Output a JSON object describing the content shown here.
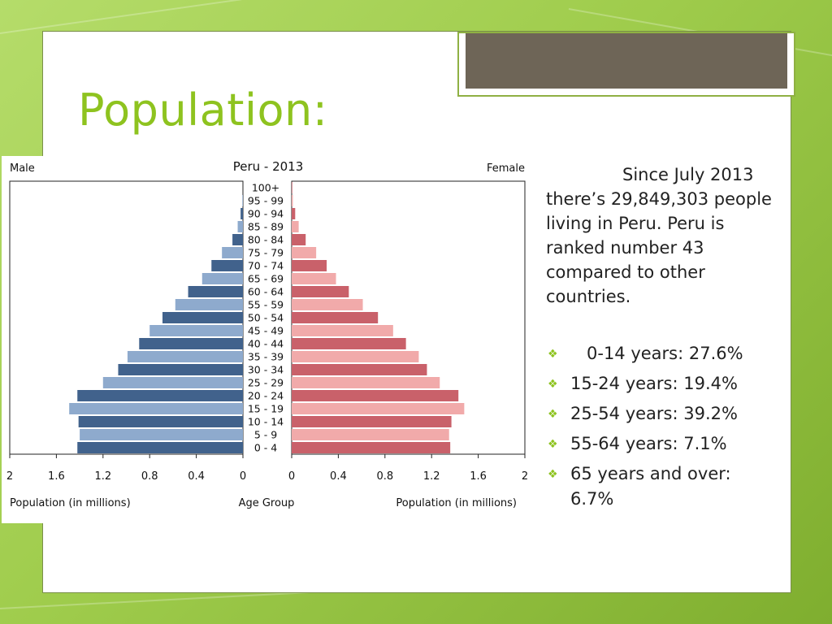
{
  "slide": {
    "heading": "Population:",
    "body_paragraph": "Since July 2013 there’s 29,849,303 people living in Peru. Peru is ranked number 43 compared to other countries.",
    "stats": [
      "0-14 years: 27.6%",
      "15-24 years: 19.4%",
      "25-54 years: 39.2%",
      "55-64 years: 7.1%",
      "65 years and over: 6.7%"
    ],
    "bullet_icon": "diamond-cluster-icon",
    "accent_color": "#8ec31f",
    "title_bar_color": "#6e6557"
  },
  "chart_data": {
    "type": "bar",
    "title": "Peru - 2013",
    "left_label": "Male",
    "right_label": "Female",
    "xlabel_left": "Population (in millions)",
    "xlabel_center": "Age Group",
    "xlabel_right": "Population (in millions)",
    "xlim": [
      0,
      2
    ],
    "left_ticks": [
      "2",
      "1.6",
      "1.2",
      "0.8",
      "0.4",
      "0"
    ],
    "right_ticks": [
      "0",
      "0.4",
      "0.8",
      "1.2",
      "1.6",
      "2"
    ],
    "categories": [
      "100+",
      "95 - 99",
      "90 - 94",
      "85 - 89",
      "80 - 84",
      "75 - 79",
      "70 - 74",
      "65 - 69",
      "60 - 64",
      "55 - 59",
      "50 - 54",
      "45 - 49",
      "40 - 44",
      "35 - 39",
      "30 - 34",
      "25 - 29",
      "20 - 24",
      "15 - 19",
      "10 - 14",
      "5 - 9",
      "0 - 4"
    ],
    "series": [
      {
        "name": "Male",
        "values": [
          0.0,
          0.005,
          0.02,
          0.045,
          0.09,
          0.18,
          0.27,
          0.35,
          0.47,
          0.58,
          0.69,
          0.8,
          0.89,
          0.99,
          1.07,
          1.2,
          1.42,
          1.49,
          1.41,
          1.4,
          1.42
        ],
        "colors": [
          "#41628c",
          "#8eaacd"
        ]
      },
      {
        "name": "Female",
        "values": [
          0.005,
          0.01,
          0.03,
          0.06,
          0.12,
          0.21,
          0.3,
          0.38,
          0.49,
          0.61,
          0.74,
          0.87,
          0.98,
          1.09,
          1.16,
          1.27,
          1.43,
          1.48,
          1.37,
          1.35,
          1.36
        ],
        "colors": [
          "#c9616a",
          "#f1aaaa"
        ]
      }
    ]
  }
}
